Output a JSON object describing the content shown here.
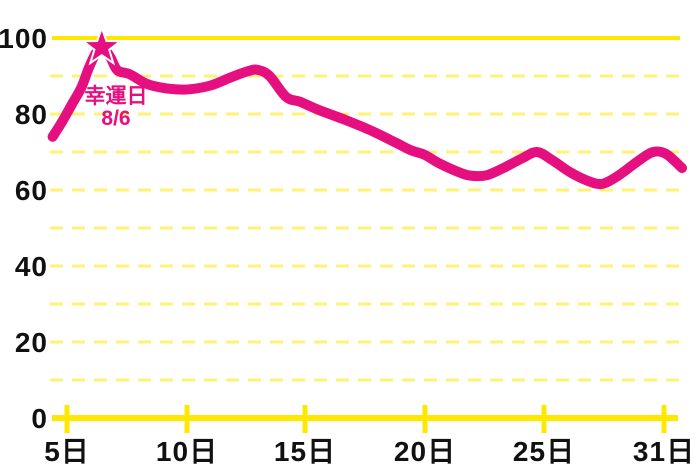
{
  "chart_data": {
    "type": "line",
    "title": "",
    "xlabel": "",
    "ylabel": "",
    "ylim": [
      0,
      100
    ],
    "gridlines": "horizontal dashed every 10, solid line at 100, solid axis at 0",
    "legend": "none",
    "x_tick_labels": [
      "5日",
      "10日",
      "15日",
      "20日",
      "25日",
      "31日"
    ],
    "x_tick_days": [
      5,
      10,
      15,
      20,
      25,
      31
    ],
    "y_tick_labels": [
      "0",
      "20",
      "40",
      "60",
      "80",
      "100"
    ],
    "y_ticks": [
      0,
      20,
      40,
      60,
      80,
      100
    ],
    "samples": [
      [
        4.4,
        74
      ],
      [
        4.8,
        78
      ],
      [
        5.2,
        82.5
      ],
      [
        5.6,
        87
      ],
      [
        5.9,
        92
      ],
      [
        6.2,
        96
      ],
      [
        6.45,
        97.8
      ],
      [
        6.8,
        95
      ],
      [
        7.1,
        91.5
      ],
      [
        7.6,
        90.5
      ],
      [
        8.3,
        88
      ],
      [
        8.9,
        87
      ],
      [
        9.5,
        86.5
      ],
      [
        10.1,
        86.5
      ],
      [
        11.0,
        87.5
      ],
      [
        11.8,
        89.5
      ],
      [
        12.6,
        91.3
      ],
      [
        13.0,
        91.6
      ],
      [
        13.5,
        90
      ],
      [
        14.2,
        84.5
      ],
      [
        14.8,
        83.2
      ],
      [
        15.6,
        81
      ],
      [
        16.7,
        78.4
      ],
      [
        17.7,
        75.8
      ],
      [
        18.8,
        72.4
      ],
      [
        19.4,
        70.5
      ],
      [
        20.0,
        69.2
      ],
      [
        20.6,
        67
      ],
      [
        21.5,
        64.5
      ],
      [
        22.0,
        63.7
      ],
      [
        22.6,
        63.9
      ],
      [
        23.3,
        65.8
      ],
      [
        24.1,
        68.4
      ],
      [
        24.7,
        70
      ],
      [
        25.4,
        67.9
      ],
      [
        26.3,
        64.7
      ],
      [
        27.2,
        62.4
      ],
      [
        27.9,
        61.6
      ],
      [
        28.7,
        63.7
      ],
      [
        29.7,
        67.6
      ],
      [
        30.45,
        70
      ],
      [
        31.1,
        69.5
      ],
      [
        31.9,
        65.8
      ]
    ],
    "annotation": {
      "label": "幸運日",
      "date": "8/6",
      "day": 6.45,
      "value": 97.8,
      "marker": "star"
    },
    "colors": {
      "line": "#E60F80",
      "grid_solid": "#FFE800",
      "grid_dashed": "#FFF275",
      "axis_text": "#111111",
      "background": "#FFFFFF"
    }
  }
}
